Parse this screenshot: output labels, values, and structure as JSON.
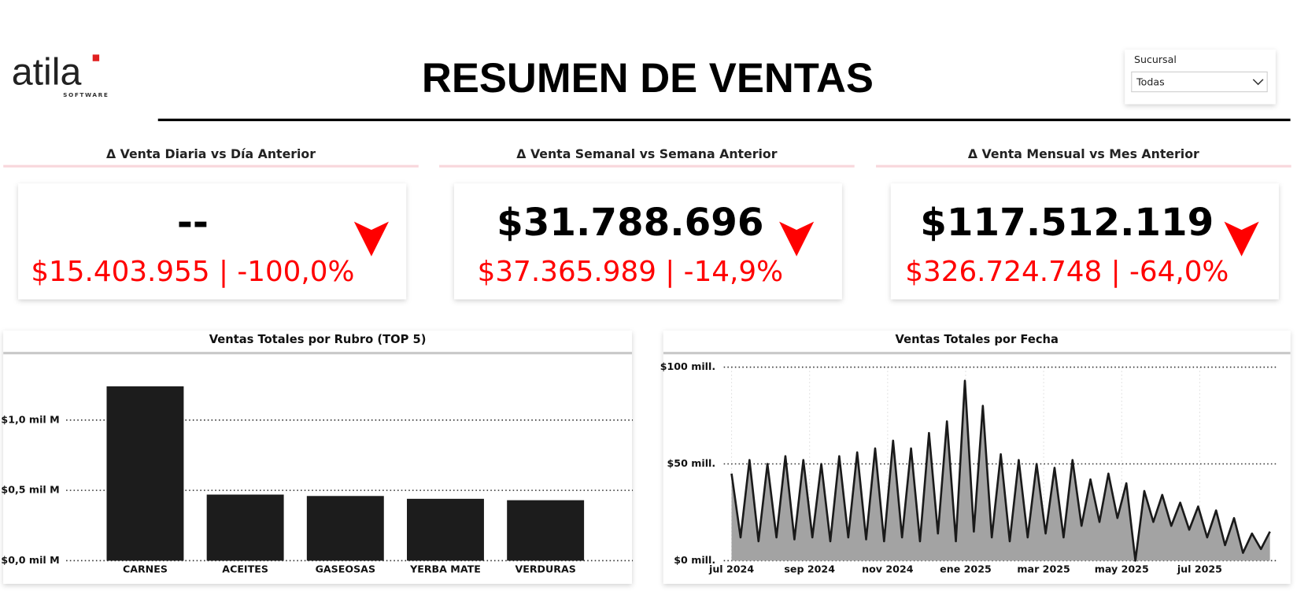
{
  "header": {
    "logo": "atila",
    "logo_sub": "SOFTWARE",
    "title": "RESUMEN DE VENTAS"
  },
  "slicer": {
    "label": "Sucursal",
    "value": "Todas"
  },
  "kpis": [
    {
      "title": "Δ Venta Diaria vs Día Anterior",
      "value": "--",
      "comparison": "$15.403.955 | -100,0%"
    },
    {
      "title": "Δ Venta Semanal vs Semana Anterior",
      "value": "$31.788.696",
      "comparison": "$37.365.989 | -14,9%"
    },
    {
      "title": "Δ Venta Mensual vs Mes Anterior",
      "value": "$117.512.119",
      "comparison": "$326.724.748 | -64,0%"
    }
  ],
  "chart_data": [
    {
      "type": "bar",
      "title": "Ventas Totales por Rubro (TOP 5)",
      "categories": [
        "CARNES",
        "ACEITES",
        "GASEOSAS",
        "YERBA MATE",
        "VERDURAS"
      ],
      "values": [
        1.24,
        0.47,
        0.46,
        0.44,
        0.43
      ],
      "color": "#1c1c1c",
      "ylim": [
        0,
        1.4
      ],
      "yticks": [
        {
          "value": 0,
          "label": "$0,0 mil M"
        },
        {
          "value": 0.5,
          "label": "$0,5 mil M"
        },
        {
          "value": 1,
          "label": "$1,0 mil M"
        }
      ],
      "grid": true
    },
    {
      "type": "area",
      "title": "Ventas Totales por Fecha",
      "x": [
        0,
        0.23,
        0.46,
        0.69,
        0.92,
        1.15,
        1.38,
        1.61,
        1.84,
        2.07,
        2.3,
        2.53,
        2.76,
        2.99,
        3.22,
        3.45,
        3.68,
        3.91,
        4.14,
        4.37,
        4.6,
        4.83,
        5.06,
        5.29,
        5.52,
        5.75,
        5.98,
        6.21,
        6.44,
        6.67,
        6.9,
        7.13,
        7.36,
        7.59,
        7.82,
        8.05,
        8.28,
        8.51,
        8.74,
        8.97,
        9.2,
        9.43,
        9.66,
        9.89,
        10.12,
        10.35,
        10.58,
        10.81,
        11.04,
        11.27,
        11.5,
        11.73,
        11.96,
        12.19,
        12.42,
        12.65,
        12.88,
        13.11,
        13.34,
        13.57,
        13.8
      ],
      "values": [
        45,
        12,
        52,
        10,
        50,
        12,
        54,
        11,
        52,
        12,
        50,
        10,
        54,
        12,
        56,
        11,
        58,
        10,
        62,
        12,
        58,
        10,
        66,
        14,
        72,
        10,
        93,
        15,
        80,
        12,
        55,
        10,
        52,
        12,
        50,
        14,
        48,
        12,
        52,
        18,
        42,
        20,
        45,
        22,
        40,
        0,
        36,
        20,
        34,
        18,
        30,
        16,
        28,
        12,
        26,
        8,
        22,
        4,
        14,
        6,
        15
      ],
      "color": "#1a1a1a",
      "fill_color": "#a3a3a3",
      "xlim": [
        -0.2,
        13.9
      ],
      "xticks": [
        {
          "value": 0,
          "label": "jul 2024"
        },
        {
          "value": 2,
          "label": "sep 2024"
        },
        {
          "value": 4,
          "label": "nov 2024"
        },
        {
          "value": 6,
          "label": "ene 2025"
        },
        {
          "value": 8,
          "label": "mar 2025"
        },
        {
          "value": 10,
          "label": "may 2025"
        },
        {
          "value": 12,
          "label": "jul 2025"
        }
      ],
      "ylim": [
        0,
        100
      ],
      "yticks": [
        {
          "value": 0,
          "label": "$0 mill."
        },
        {
          "value": 50,
          "label": "$50 mill."
        },
        {
          "value": 100,
          "label": "$100 mill."
        }
      ],
      "grid": true
    }
  ]
}
